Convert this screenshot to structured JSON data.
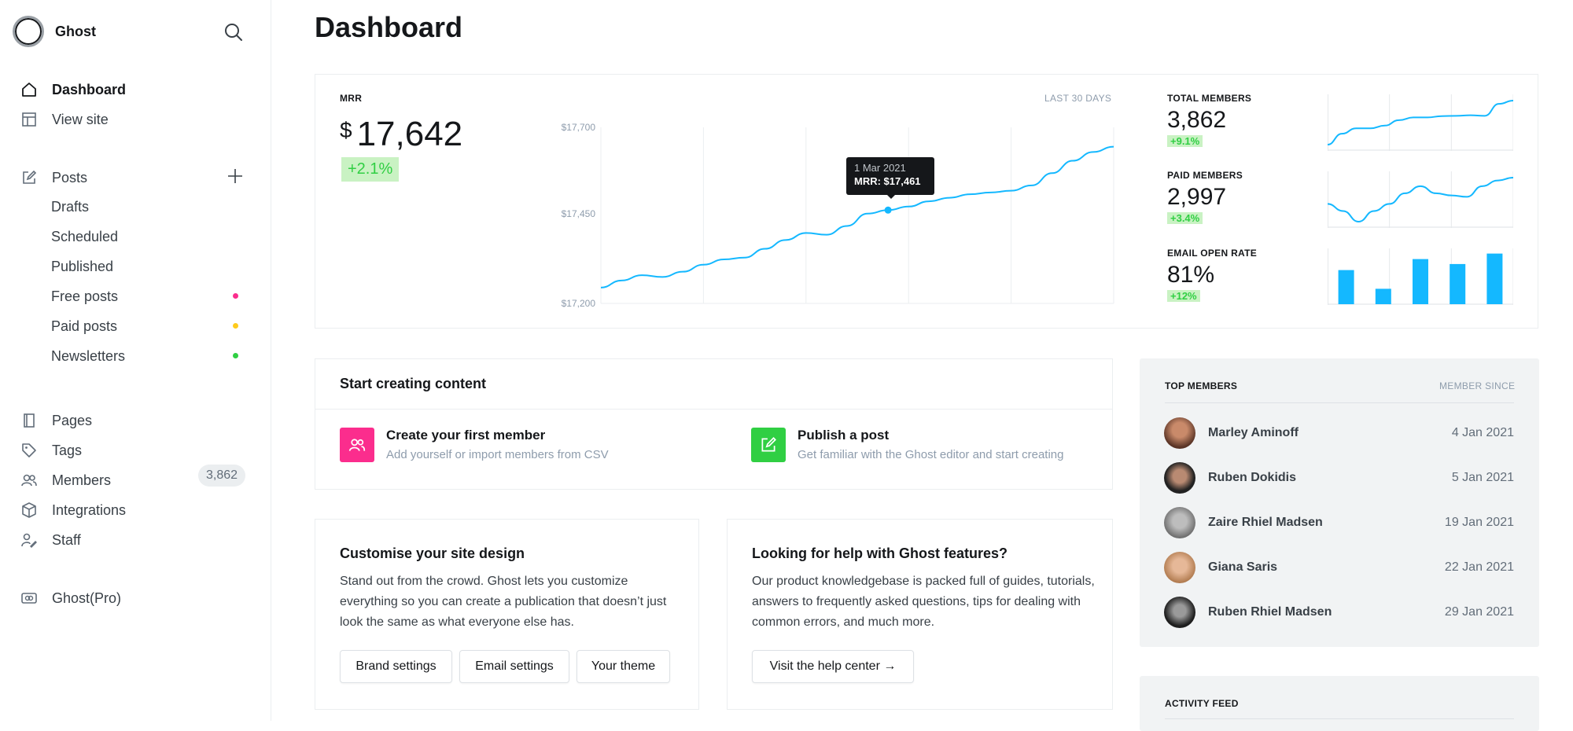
{
  "sidebar": {
    "brand": "Ghost",
    "nav_top": [
      {
        "label": "Dashboard"
      },
      {
        "label": "View site"
      }
    ],
    "posts": {
      "label": "Posts",
      "sub": [
        "Drafts",
        "Scheduled",
        "Published",
        "Free posts",
        "Paid posts",
        "Newsletters"
      ],
      "dot_colors": [
        "#fb2d8d",
        "#fecb1d",
        "#30cf43"
      ]
    },
    "nav_mid": [
      {
        "label": "Pages"
      },
      {
        "label": "Tags"
      },
      {
        "label": "Members"
      },
      {
        "label": "Integrations"
      },
      {
        "label": "Staff"
      }
    ],
    "members_count": "3,862",
    "nav_bottom": [
      {
        "label": "Ghost(Pro)"
      }
    ]
  },
  "page_title": "Dashboard",
  "mrr": {
    "label": "MRR",
    "currency": "$",
    "value": "17,642",
    "delta": "+2.1%",
    "range_label": "LAST 30 DAYS",
    "tooltip_date": "1 Mar 2021",
    "tooltip_value": "MRR: $17,461"
  },
  "chart_data": [
    {
      "type": "line",
      "title": "MRR",
      "ylim": [
        17200,
        17700
      ],
      "yticks": [
        "$17,700",
        "$17,450",
        "$17,200"
      ],
      "values": [
        17245,
        17265,
        17280,
        17275,
        17290,
        17310,
        17325,
        17330,
        17355,
        17380,
        17400,
        17395,
        17420,
        17455,
        17465,
        17475,
        17490,
        17500,
        17510,
        17515,
        17520,
        17535,
        17570,
        17605,
        17630,
        17645
      ]
    },
    {
      "type": "line",
      "title": "TOTAL MEMBERS",
      "values": [
        3700,
        3740,
        3760,
        3760,
        3770,
        3790,
        3800,
        3800,
        3805,
        3806,
        3808,
        3806,
        3850,
        3862
      ]
    },
    {
      "type": "line",
      "title": "PAID MEMBERS",
      "values": [
        2960,
        2950,
        2935,
        2950,
        2960,
        2975,
        2985,
        2975,
        2972,
        2970,
        2985,
        2993,
        2997
      ]
    },
    {
      "type": "bar",
      "title": "EMAIL OPEN RATE",
      "values": [
        62,
        28,
        82,
        73,
        92
      ]
    }
  ],
  "stats": [
    {
      "label": "TOTAL MEMBERS",
      "value": "3,862",
      "delta": "+9.1%"
    },
    {
      "label": "PAID MEMBERS",
      "value": "2,997",
      "delta": "+3.4%"
    },
    {
      "label": "EMAIL OPEN RATE",
      "value": "81%",
      "delta": "+12%"
    }
  ],
  "start_content": {
    "title": "Start creating content",
    "items": [
      {
        "title": "Create your first member",
        "desc": "Add yourself or import members from CSV",
        "color": "#fb2d8d"
      },
      {
        "title": "Publish a post",
        "desc": "Get familiar with the Ghost editor and start creating",
        "color": "#30cf43"
      }
    ]
  },
  "design_card": {
    "title": "Customise your site design",
    "text": "Stand out from the crowd. Ghost lets you customize everything so you can create a publication that doesn’t just look the same as what everyone else has.",
    "buttons": [
      "Brand settings",
      "Email settings",
      "Your theme"
    ]
  },
  "help_card": {
    "title": "Looking for help with Ghost features?",
    "text": "Our product knowledgebase is packed full of guides, tutorials, answers to frequently asked questions, tips for dealing with common errors, and much more.",
    "button": "Visit the help center →"
  },
  "top_members": {
    "title": "TOP MEMBERS",
    "since_label": "MEMBER SINCE",
    "rows": [
      {
        "name": "Marley Aminoff",
        "date": "4 Jan 2021"
      },
      {
        "name": "Ruben Dokidis",
        "date": "5 Jan 2021"
      },
      {
        "name": "Zaire Rhiel Madsen",
        "date": "19 Jan 2021"
      },
      {
        "name": "Giana Saris",
        "date": "22 Jan 2021"
      },
      {
        "name": "Ruben Rhiel Madsen",
        "date": "29 Jan 2021"
      }
    ]
  },
  "activity_feed": {
    "title": "ACTIVITY FEED"
  },
  "colors": {
    "accent": "#14b8ff",
    "chart": "#14b8ff"
  }
}
